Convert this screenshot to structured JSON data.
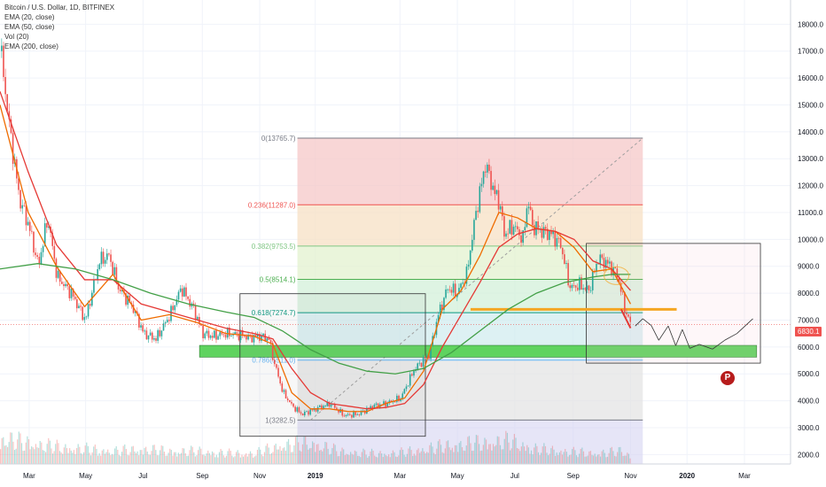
{
  "header": {
    "symbol_line": "Bitcoin / U.S. Dollar, 1D, BITFINEX",
    "indicators": [
      "EMA (20, close)",
      "EMA (50, close)",
      "Vol (20)",
      "EMA (200, close)"
    ]
  },
  "price_axis": {
    "ticks": [
      "2000.0",
      "3000.0",
      "4000.0",
      "5000.0",
      "6000.0",
      "7000.0",
      "8000.0",
      "9000.0",
      "10000.0",
      "11000.0",
      "12000.0",
      "13000.0",
      "14000.0",
      "15000.0",
      "16000.0",
      "17000.0",
      "18000.0"
    ],
    "tick_values": [
      2000,
      3000,
      4000,
      5000,
      6000,
      7000,
      8000,
      9000,
      10000,
      11000,
      12000,
      13000,
      14000,
      15000,
      16000,
      17000,
      18000
    ],
    "last_price": "6830.1",
    "last_price_value": 6830.1,
    "ylim": [
      1650,
      18900
    ]
  },
  "time_axis": {
    "labels": [
      "Mar",
      "May",
      "Jul",
      "Sep",
      "Nov",
      "2019",
      "Mar",
      "May",
      "Jul",
      "Sep",
      "Nov",
      "2020",
      "Mar"
    ],
    "label_days": [
      31,
      91,
      152,
      215,
      276,
      335,
      425,
      486,
      547,
      609,
      670,
      730,
      791
    ],
    "xlim": [
      0,
      840
    ]
  },
  "fib": {
    "levels": [
      {
        "label": "0(13765.7)",
        "price": 13765.7,
        "color": "#787b86"
      },
      {
        "label": "0.236(11287.0)",
        "price": 11287.0,
        "color": "#ef5350"
      },
      {
        "label": "0.382(9753.5)",
        "price": 9753.5,
        "color": "#81c784"
      },
      {
        "label": "0.5(8514.1)",
        "price": 8514.1,
        "color": "#4caf50"
      },
      {
        "label": "0.618(7274.7)",
        "price": 7274.7,
        "color": "#089981"
      },
      {
        "label": "0.786(5511.0)",
        "price": 5511.0,
        "color": "#64b5f6"
      },
      {
        "label": "1(3282.5)",
        "price": 3282.5,
        "color": "#787b86"
      }
    ],
    "day_start": 316,
    "day_end": 683,
    "zones": [
      "#f6c8c8",
      "#f7e0c4",
      "#e3f2cf",
      "#d3f0d9",
      "#d2ecef",
      "#e4e4e4",
      "#d6d4f2"
    ]
  },
  "annotations": {
    "support_zone": {
      "day_start": 212,
      "day_end": 804,
      "low": 5620,
      "high": 6060,
      "color": "#5fd35f"
    },
    "resistance_line": {
      "day_start": 500,
      "day_end": 719,
      "price": 7400,
      "color": "#f5a623"
    },
    "box_left": {
      "day_start": 255,
      "day_end": 452,
      "low": 2680,
      "high": 7980
    },
    "box_right": {
      "day_start": 623,
      "day_end": 808,
      "low": 5400,
      "high": 9850
    },
    "projection": {
      "days": [
        675,
        683,
        692,
        700,
        710,
        718,
        725,
        733,
        743,
        757,
        770,
        783,
        800
      ],
      "prices": [
        6780,
        7050,
        6800,
        6250,
        6780,
        6050,
        6650,
        5950,
        6100,
        5920,
        6250,
        6500,
        7050
      ]
    }
  },
  "chart_data": {
    "type": "line",
    "title": "Bitcoin / U.S. Dollar, 1D, BITFINEX",
    "x_unit": "days since Jan 2018",
    "series": [
      {
        "name": "Price",
        "color": "#26a69a",
        "x": [
          0,
          10,
          20,
          30,
          40,
          50,
          60,
          75,
          90,
          105,
          115,
          125,
          140,
          152,
          165,
          180,
          192,
          205,
          215,
          225,
          240,
          255,
          265,
          275,
          285,
          290,
          300,
          310,
          320,
          335,
          350,
          365,
          380,
          395,
          410,
          425,
          440,
          455,
          465,
          475,
          485,
          495,
          505,
          515,
          525,
          530,
          535,
          545,
          555,
          560,
          565,
          575,
          585,
          595,
          605,
          615,
          625,
          635,
          645,
          655,
          665,
          670
        ],
        "y": [
          17000,
          14000,
          11500,
          10500,
          9000,
          10800,
          8600,
          8000,
          7000,
          9200,
          9400,
          8200,
          7500,
          6500,
          6300,
          7200,
          8200,
          7400,
          6500,
          6400,
          6500,
          6450,
          6350,
          6400,
          6300,
          5500,
          4300,
          3800,
          3500,
          3700,
          3900,
          3450,
          3500,
          3800,
          3900,
          4100,
          5200,
          5700,
          7200,
          8200,
          8000,
          8700,
          11000,
          12800,
          11700,
          11400,
          10200,
          10500,
          10000,
          11500,
          10500,
          10300,
          10200,
          9800,
          8200,
          8300,
          8100,
          9300,
          9100,
          8700,
          7200,
          6830
        ]
      },
      {
        "name": "EMA 20",
        "color": "#ef6c00",
        "x": [
          0,
          30,
          60,
          90,
          120,
          150,
          180,
          210,
          240,
          270,
          290,
          310,
          330,
          350,
          370,
          390,
          410,
          430,
          450,
          470,
          490,
          510,
          530,
          550,
          570,
          590,
          610,
          630,
          650,
          670
        ],
        "y": [
          15000,
          11000,
          9000,
          7500,
          8700,
          7000,
          7200,
          6900,
          6500,
          6400,
          6100,
          4300,
          3700,
          3700,
          3600,
          3600,
          3900,
          4100,
          5100,
          7400,
          8100,
          9400,
          11000,
          10800,
          10400,
          10300,
          9700,
          8800,
          8900,
          7600
        ]
      },
      {
        "name": "EMA 50",
        "color": "#e53935",
        "x": [
          0,
          30,
          60,
          90,
          120,
          150,
          180,
          210,
          240,
          270,
          290,
          310,
          330,
          350,
          370,
          390,
          410,
          430,
          450,
          470,
          490,
          510,
          530,
          550,
          570,
          590,
          610,
          630,
          650,
          670
        ],
        "y": [
          15500,
          12500,
          9800,
          8500,
          8500,
          7600,
          7300,
          7000,
          6700,
          6500,
          6300,
          5200,
          4300,
          3900,
          3800,
          3700,
          3750,
          3900,
          4600,
          6000,
          7200,
          8400,
          9700,
          10200,
          10400,
          10300,
          10000,
          9200,
          8900,
          8100
        ]
      },
      {
        "name": "EMA 200",
        "color": "#43a047",
        "x": [
          0,
          40,
          80,
          120,
          160,
          200,
          240,
          270,
          300,
          330,
          360,
          390,
          420,
          450,
          480,
          510,
          540,
          570,
          600,
          630,
          650,
          670
        ],
        "y": [
          8900,
          9100,
          8900,
          8500,
          8000,
          7600,
          7300,
          7100,
          6600,
          5900,
          5400,
          5100,
          5000,
          5200,
          5800,
          6600,
          7400,
          8000,
          8400,
          8600,
          8700,
          8700
        ]
      }
    ],
    "volume": {
      "x": [
        0,
        30,
        60,
        90,
        120,
        150,
        180,
        210,
        240,
        270,
        300,
        330,
        360,
        390,
        420,
        450,
        480,
        510,
        540,
        570,
        600,
        630,
        660,
        670
      ],
      "values": [
        0.6,
        0.5,
        0.4,
        0.35,
        0.3,
        0.35,
        0.3,
        0.3,
        0.25,
        0.25,
        0.45,
        0.5,
        0.3,
        0.25,
        0.25,
        0.35,
        0.45,
        0.5,
        0.55,
        0.35,
        0.3,
        0.25,
        0.3,
        0.2
      ]
    },
    "ylim": [
      1650,
      18900
    ],
    "xlim": [
      0,
      840
    ]
  },
  "colors": {
    "bull": "#26a69a",
    "bear": "#ef5350",
    "grid": "#f0f3fa",
    "axis_text": "#131722",
    "price_line": "#ef5350"
  }
}
